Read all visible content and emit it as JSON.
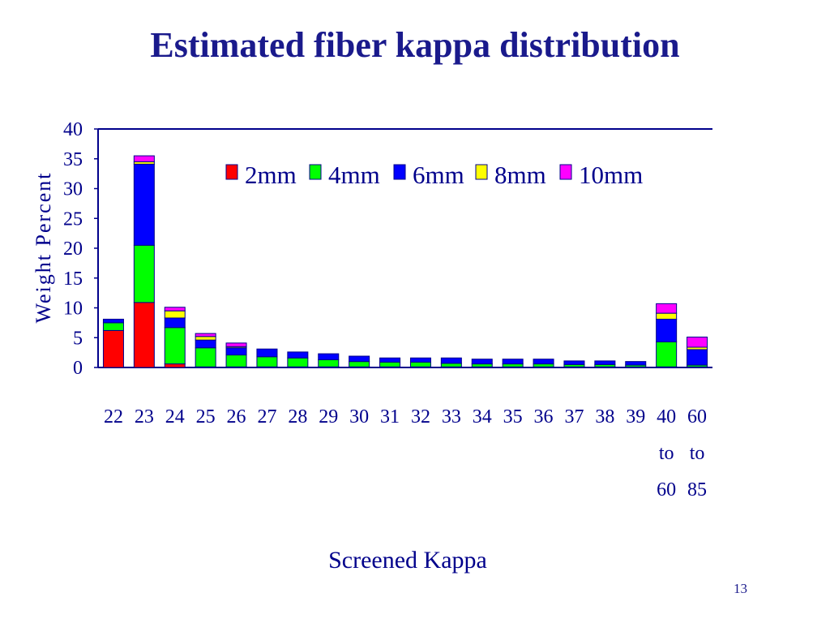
{
  "slide": {
    "title": "Estimated fiber kappa distribution",
    "page_number": "13"
  },
  "colors": {
    "title": "#1a1a8c",
    "axis": "#00008b",
    "series": [
      "#ff0000",
      "#00ff00",
      "#0000ff",
      "#ffff00",
      "#ff00ff"
    ]
  },
  "chart_data": {
    "type": "bar",
    "stacked": true,
    "title": "",
    "xlabel": "Screened Kappa",
    "ylabel": "Weight Percent",
    "ylim": [
      0,
      40
    ],
    "yticks": [
      0,
      5,
      10,
      15,
      20,
      25,
      30,
      35,
      40
    ],
    "grid": false,
    "legend_position": "top",
    "categories": [
      [
        "22"
      ],
      [
        "23"
      ],
      [
        "24"
      ],
      [
        "25"
      ],
      [
        "26"
      ],
      [
        "27"
      ],
      [
        "28"
      ],
      [
        "29"
      ],
      [
        "30"
      ],
      [
        "31"
      ],
      [
        "32"
      ],
      [
        "33"
      ],
      [
        "34"
      ],
      [
        "35"
      ],
      [
        "36"
      ],
      [
        "37"
      ],
      [
        "38"
      ],
      [
        "39"
      ],
      [
        "40",
        "to",
        "60"
      ],
      [
        "60",
        "to",
        "85"
      ]
    ],
    "series": [
      {
        "name": "2mm",
        "values": [
          6.2,
          10.9,
          0.6,
          0.1,
          0.1,
          0.1,
          0.1,
          0.1,
          0.1,
          0.1,
          0.1,
          0.1,
          0.1,
          0.1,
          0.1,
          0.1,
          0.1,
          0.1,
          0.1,
          0.1
        ]
      },
      {
        "name": "4mm",
        "values": [
          1.3,
          9.6,
          6.1,
          3.2,
          2.0,
          1.7,
          1.5,
          1.2,
          0.9,
          0.8,
          0.8,
          0.6,
          0.5,
          0.5,
          0.5,
          0.4,
          0.4,
          0.3,
          4.2,
          0.3
        ]
      },
      {
        "name": "6mm",
        "values": [
          0.6,
          13.6,
          1.6,
          1.3,
          1.2,
          1.3,
          1.0,
          1.0,
          0.9,
          0.7,
          0.7,
          0.9,
          0.8,
          0.8,
          0.8,
          0.6,
          0.6,
          0.6,
          3.8,
          2.6
        ]
      },
      {
        "name": "8mm",
        "values": [
          0.0,
          0.4,
          1.2,
          0.6,
          0.2,
          0.0,
          0.0,
          0.0,
          0.0,
          0.0,
          0.0,
          0.0,
          0.0,
          0.0,
          0.0,
          0.0,
          0.0,
          0.0,
          1.0,
          0.4
        ]
      },
      {
        "name": "10mm",
        "values": [
          0.0,
          1.0,
          0.6,
          0.5,
          0.6,
          0.0,
          0.0,
          0.0,
          0.0,
          0.0,
          0.0,
          0.0,
          0.0,
          0.0,
          0.0,
          0.0,
          0.0,
          0.0,
          1.6,
          1.7
        ]
      }
    ]
  }
}
